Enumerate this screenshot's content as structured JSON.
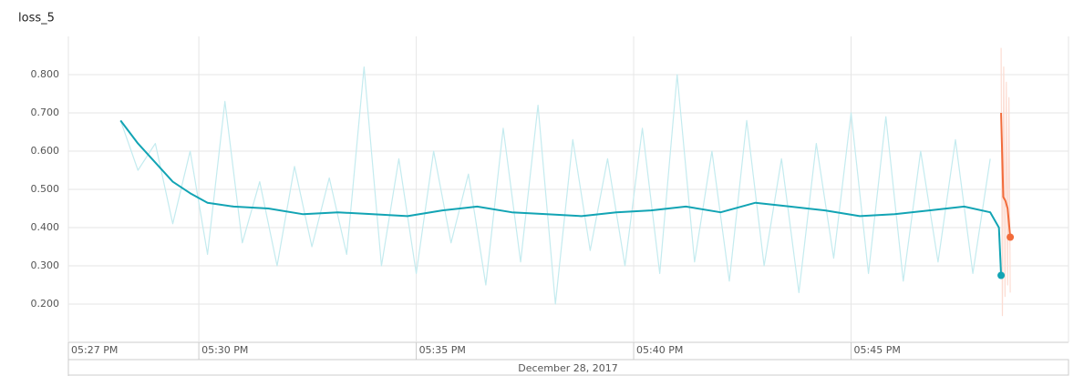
{
  "chart_data": {
    "type": "line",
    "title": "loss_5",
    "date_label": "December 28, 2017",
    "xlim": [
      1047,
      1070
    ],
    "xticks": [
      {
        "value": 1047,
        "label": "05:27 PM"
      },
      {
        "value": 1050,
        "label": "05:30 PM"
      },
      {
        "value": 1055,
        "label": "05:35 PM"
      },
      {
        "value": 1060,
        "label": "05:40 PM"
      },
      {
        "value": 1065,
        "label": "05:45 PM"
      }
    ],
    "ylim": [
      0.1,
      0.9
    ],
    "yticks": [
      {
        "value": 0.2,
        "label": "0.200"
      },
      {
        "value": 0.3,
        "label": "0.300"
      },
      {
        "value": 0.4,
        "label": "0.400"
      },
      {
        "value": 0.5,
        "label": "0.500"
      },
      {
        "value": 0.6,
        "label": "0.600"
      },
      {
        "value": 0.7,
        "label": "0.700"
      },
      {
        "value": 0.8,
        "label": "0.800"
      }
    ],
    "grid": true,
    "series": [
      {
        "color": "#c4ebef",
        "width": 1.2,
        "end_marker": false,
        "x": [
          1048.2,
          1048.6,
          1049.0,
          1049.4,
          1049.8,
          1050.2,
          1050.6,
          1051.0,
          1051.4,
          1051.8,
          1052.2,
          1052.6,
          1053.0,
          1053.4,
          1053.8,
          1054.2,
          1054.6,
          1055.0,
          1055.4,
          1055.8,
          1056.2,
          1056.6,
          1057.0,
          1057.4,
          1057.8,
          1058.2,
          1058.6,
          1059.0,
          1059.4,
          1059.8,
          1060.2,
          1060.6,
          1061.0,
          1061.4,
          1061.8,
          1062.2,
          1062.6,
          1063.0,
          1063.4,
          1063.8,
          1064.2,
          1064.6,
          1065.0,
          1065.4,
          1065.8,
          1066.2,
          1066.6,
          1067.0,
          1067.4,
          1067.8,
          1068.2
        ],
        "values": [
          0.68,
          0.55,
          0.62,
          0.41,
          0.6,
          0.33,
          0.73,
          0.36,
          0.52,
          0.3,
          0.56,
          0.35,
          0.53,
          0.33,
          0.82,
          0.3,
          0.58,
          0.28,
          0.6,
          0.36,
          0.54,
          0.25,
          0.66,
          0.31,
          0.72,
          0.2,
          0.63,
          0.34,
          0.58,
          0.3,
          0.66,
          0.28,
          0.8,
          0.31,
          0.6,
          0.26,
          0.68,
          0.3,
          0.58,
          0.23,
          0.62,
          0.32,
          0.7,
          0.28,
          0.69,
          0.26,
          0.6,
          0.31,
          0.63,
          0.28,
          0.58
        ]
      },
      {
        "color": "#fcdcd2",
        "width": 1.2,
        "end_marker": false,
        "x": [
          1068.45,
          1068.48,
          1068.51,
          1068.54,
          1068.57,
          1068.6,
          1068.63,
          1068.66
        ],
        "values": [
          0.87,
          0.17,
          0.82,
          0.22,
          0.78,
          0.25,
          0.74,
          0.23
        ]
      },
      {
        "color": "#12a4b4",
        "width": 2,
        "end_marker": true,
        "x": [
          1048.2,
          1048.6,
          1049.0,
          1049.4,
          1049.8,
          1050.2,
          1050.8,
          1051.6,
          1052.4,
          1053.2,
          1054.0,
          1054.8,
          1055.6,
          1056.4,
          1057.2,
          1058.0,
          1058.8,
          1059.6,
          1060.4,
          1061.2,
          1062.0,
          1062.8,
          1063.6,
          1064.4,
          1065.2,
          1066.0,
          1066.8,
          1067.6,
          1068.2,
          1068.4,
          1068.45
        ],
        "values": [
          0.68,
          0.62,
          0.57,
          0.52,
          0.49,
          0.465,
          0.455,
          0.45,
          0.435,
          0.44,
          0.435,
          0.43,
          0.445,
          0.455,
          0.44,
          0.435,
          0.43,
          0.44,
          0.445,
          0.455,
          0.44,
          0.465,
          0.455,
          0.445,
          0.43,
          0.435,
          0.445,
          0.455,
          0.44,
          0.4,
          0.275
        ]
      },
      {
        "color": "#f26b3a",
        "width": 2,
        "end_marker": true,
        "x": [
          1068.45,
          1068.5,
          1068.55,
          1068.6,
          1068.66
        ],
        "values": [
          0.7,
          0.48,
          0.47,
          0.45,
          0.375
        ]
      }
    ]
  }
}
